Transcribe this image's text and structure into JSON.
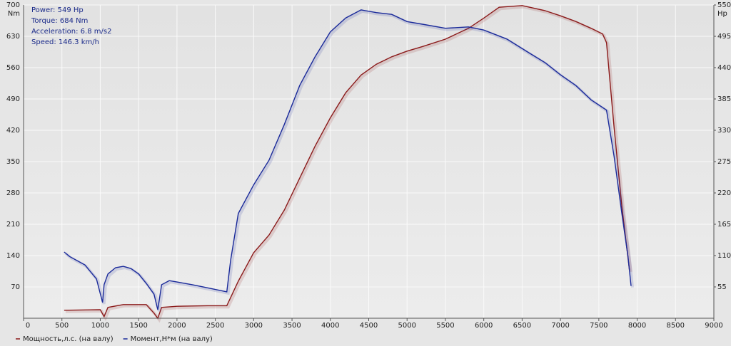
{
  "chart_data": {
    "type": "line",
    "y_label": "Nm",
    "y2_label": "Hp",
    "annotations": [
      "Power: 549 Hp",
      "Torque: 684 Nm",
      "Acceleration: 6.8 m/s2",
      "Speed: 146.3 km/h"
    ],
    "xlim": [
      0,
      9000
    ],
    "xticks": [
      0,
      500,
      1000,
      1500,
      2000,
      2500,
      3000,
      3500,
      4000,
      4500,
      5000,
      5500,
      6000,
      6500,
      7000,
      7500,
      8000,
      8500,
      9000
    ],
    "ylim": [
      0,
      700
    ],
    "yticks": [
      70,
      140,
      210,
      280,
      350,
      420,
      490,
      560,
      630,
      700
    ],
    "y2lim": [
      0,
      550
    ],
    "y2ticks": [
      55,
      110,
      165,
      220,
      275,
      330,
      385,
      440,
      495,
      550
    ],
    "grid": true,
    "series": [
      {
        "name": "Мощность,л.с. (на валу)",
        "color": "#8b1a1a",
        "axis": "y2",
        "x": [
          530,
          1000,
          1050,
          1100,
          1300,
          1600,
          1700,
          1750,
          1800,
          2000,
          2400,
          2650,
          2800,
          3000,
          3200,
          3400,
          3600,
          3800,
          4000,
          4200,
          4400,
          4600,
          4800,
          5000,
          5200,
          5500,
          5800,
          6000,
          6200,
          6500,
          6800,
          7000,
          7200,
          7400,
          7550,
          7600,
          7700,
          7800,
          7900
        ],
        "values": [
          14,
          15,
          3,
          19,
          24,
          24,
          9,
          0,
          19,
          21,
          22,
          22,
          65,
          115,
          146,
          190,
          246,
          302,
          352,
          396,
          427,
          446,
          459,
          469,
          477,
          490,
          509,
          527,
          546,
          549,
          540,
          531,
          521,
          509,
          499,
          484,
          334,
          196,
          84
        ]
      },
      {
        "name": "Момент,Н*м (на валу)",
        "color": "#1a2a9a",
        "axis": "y",
        "x": [
          530,
          600,
          800,
          950,
          1030,
          1050,
          1100,
          1200,
          1300,
          1400,
          1500,
          1600,
          1700,
          1750,
          1800,
          1900,
          2000,
          2200,
          2400,
          2650,
          2700,
          2800,
          3000,
          3200,
          3400,
          3600,
          3800,
          4000,
          4200,
          4400,
          4600,
          4800,
          5000,
          5200,
          5500,
          5800,
          6000,
          6300,
          6600,
          6800,
          7000,
          7200,
          7400,
          7600,
          7700,
          7800,
          7880,
          7920
        ],
        "values": [
          148,
          138,
          119,
          88,
          35,
          75,
          99,
          113,
          116,
          111,
          99,
          78,
          54,
          19,
          75,
          84,
          81,
          75,
          68,
          59,
          130,
          234,
          298,
          353,
          433,
          520,
          584,
          640,
          671,
          689,
          683,
          679,
          663,
          657,
          648,
          651,
          644,
          624,
          592,
          571,
          544,
          520,
          488,
          465,
          361,
          234,
          138,
          72
        ]
      }
    ]
  }
}
